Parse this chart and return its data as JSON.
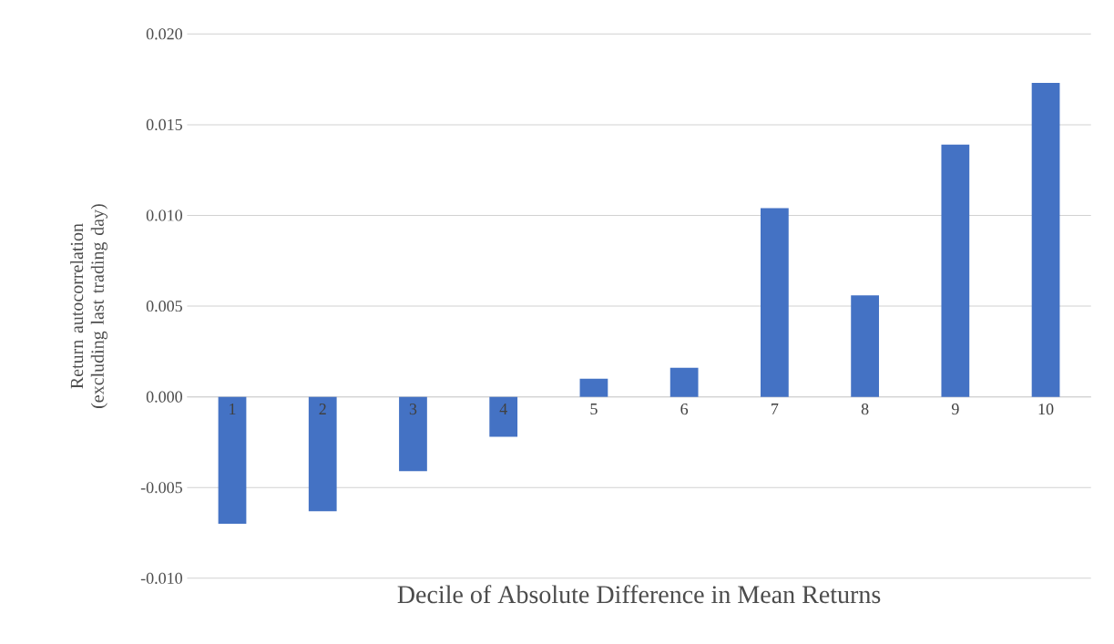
{
  "chart_data": {
    "type": "bar",
    "xlabel": "Decile of Absolute Difference in Mean Returns",
    "ylabel": "Return autocorrelation (excluding last trading day)",
    "categories": [
      "1",
      "2",
      "3",
      "4",
      "5",
      "6",
      "7",
      "8",
      "9",
      "10"
    ],
    "values": [
      -0.007,
      -0.0063,
      -0.0041,
      -0.0022,
      0.001,
      0.0016,
      0.0104,
      0.0056,
      0.0139,
      0.0173
    ],
    "color": "#4472c4",
    "ylim": [
      -0.01,
      0.02
    ],
    "yticks": [
      {
        "value": 0.02,
        "label": "0.020"
      },
      {
        "value": 0.015,
        "label": "0.015"
      },
      {
        "value": 0.01,
        "label": "0.010"
      },
      {
        "value": 0.005,
        "label": "0.005"
      },
      {
        "value": 0,
        "label": "0.000"
      },
      {
        "value": -0.005,
        "label": "-0.005"
      },
      {
        "value": -0.01,
        "label": "-0.010"
      }
    ],
    "grid": "y"
  }
}
